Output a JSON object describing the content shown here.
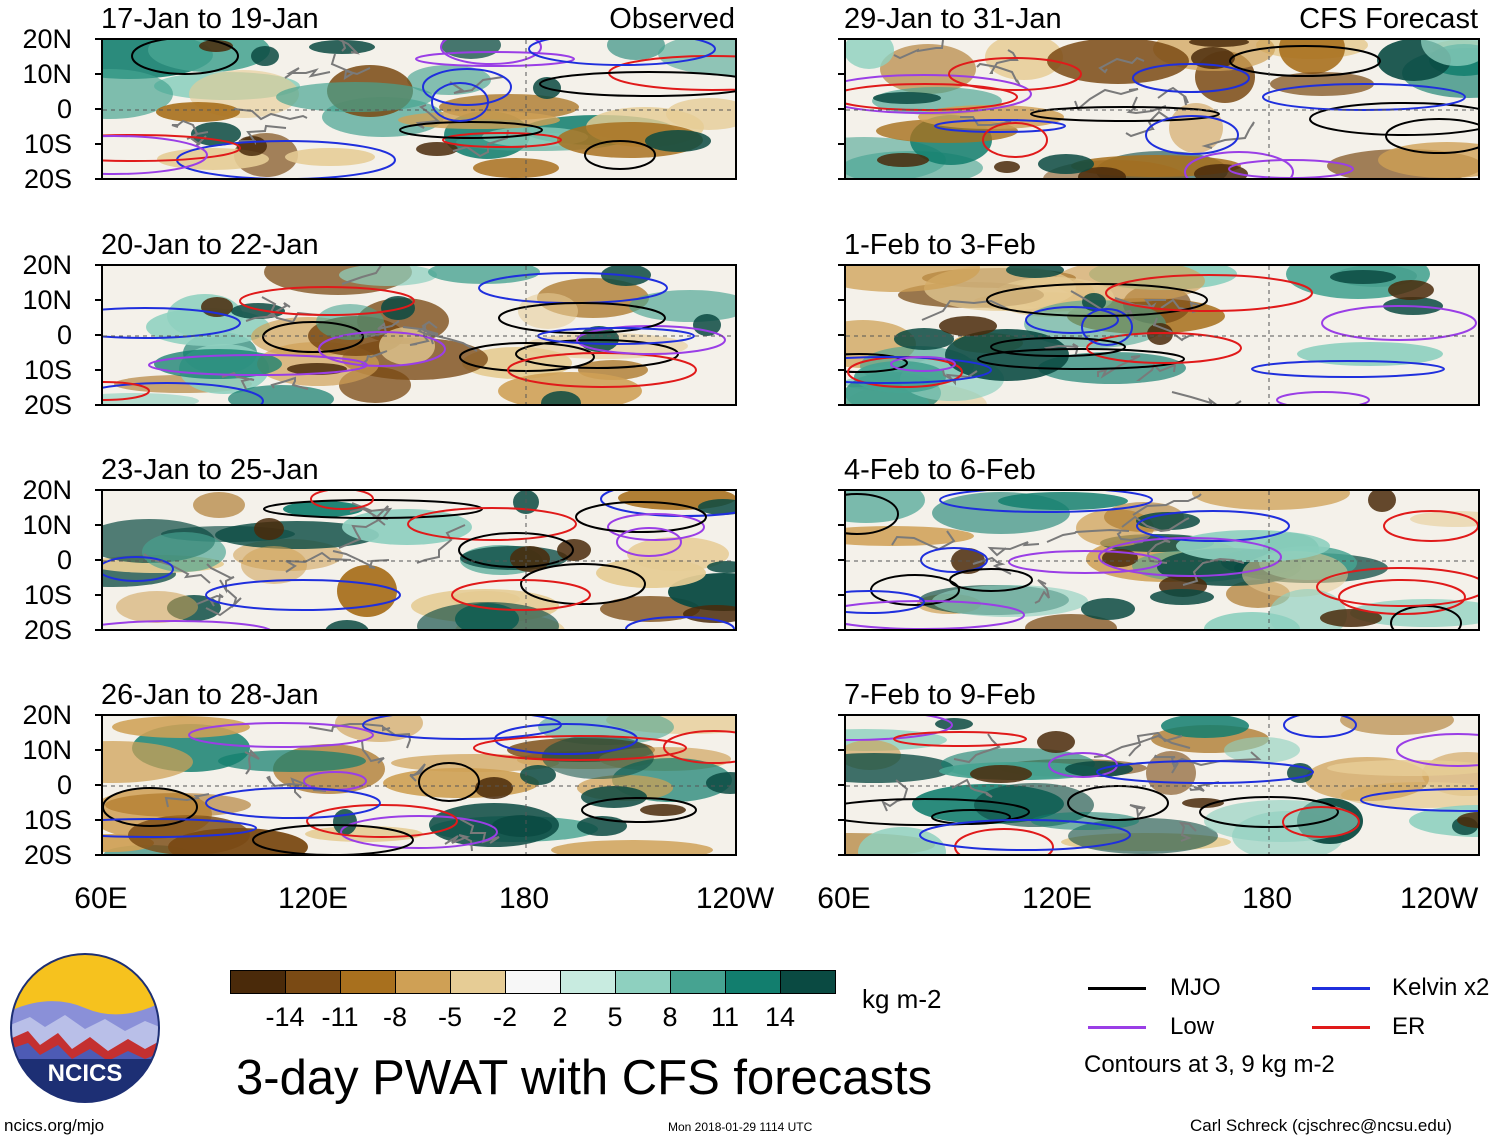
{
  "panels": [
    {
      "title": "17-Jan to 19-Jan",
      "label": "Observed"
    },
    {
      "title": "20-Jan to 22-Jan",
      "label": ""
    },
    {
      "title": "23-Jan to 25-Jan",
      "label": ""
    },
    {
      "title": "26-Jan to 28-Jan",
      "label": ""
    },
    {
      "title": "29-Jan to 31-Jan",
      "label": "CFS Forecast"
    },
    {
      "title": "1-Feb to 3-Feb",
      "label": ""
    },
    {
      "title": "4-Feb to 6-Feb",
      "label": ""
    },
    {
      "title": "7-Feb to 9-Feb",
      "label": ""
    }
  ],
  "lat_labels": [
    "20N",
    "10N",
    "0",
    "10S",
    "20S"
  ],
  "lon_labels": [
    "60E",
    "120E",
    "180",
    "120W"
  ],
  "colorbar": {
    "ticks": [
      "-14",
      "-11",
      "-8",
      "-5",
      "-2",
      "2",
      "5",
      "8",
      "11",
      "14"
    ],
    "unit": "kg m-2",
    "colors": [
      "#4a2a0a",
      "#7a4a14",
      "#a8701e",
      "#cfa055",
      "#e6cc95",
      "#f7ecd0",
      "#f7f7f7",
      "#c8ebe0",
      "#8ed0bf",
      "#46a391",
      "#127e6e",
      "#0a4a42"
    ]
  },
  "legend": {
    "mjo": {
      "label": "MJO",
      "color": "#000000"
    },
    "kelvin": {
      "label": "Kelvin x2",
      "color": "#1f2fdd"
    },
    "low": {
      "label": "Low",
      "color": "#9a3ee6"
    },
    "er": {
      "label": "ER",
      "color": "#e01a1a"
    },
    "note": "Contours at 3, 9 kg m-2"
  },
  "main_title": "3-day PWAT with CFS forecasts",
  "logo_text": "NCICS",
  "footer": {
    "url": "ncics.org/mjo",
    "timestamp": "Mon 2018-01-29 1114 UTC",
    "credit": "Carl Schreck (cjschrec@ncsu.edu)"
  }
}
